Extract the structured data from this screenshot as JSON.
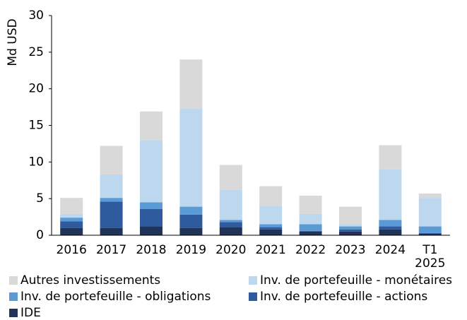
{
  "chart_data": {
    "type": "stacked_bar",
    "y_label": "Md USD",
    "categories": [
      "2016",
      "2017",
      "2018",
      "2019",
      "2020",
      "2021",
      "2022",
      "2023",
      "2024",
      "T1 2025"
    ],
    "series": [
      {
        "name": "IDE",
        "color": "#1f3458",
        "values": [
          1.0,
          1.0,
          1.2,
          1.0,
          1.1,
          0.8,
          0.5,
          0.5,
          0.8,
          0.2
        ]
      },
      {
        "name": "Inv. de portefeuille - actions",
        "color": "#2e5a9e",
        "values": [
          0.9,
          3.6,
          2.4,
          1.8,
          0.7,
          0.3,
          0.1,
          0.3,
          0.4,
          0.1
        ]
      },
      {
        "name": "Inv. de portefeuille - obligations",
        "color": "#5b9bd5",
        "values": [
          0.5,
          0.5,
          0.9,
          1.1,
          0.3,
          0.4,
          0.9,
          0.4,
          0.9,
          0.9
        ]
      },
      {
        "name": "Inv. de portefeuille - monétaires",
        "color": "#bdd7ee",
        "values": [
          0.5,
          3.2,
          8.5,
          13.4,
          4.1,
          2.5,
          1.4,
          0.3,
          6.9,
          3.9
        ]
      },
      {
        "name": "Autres investissements",
        "color": "#d9d9d9",
        "values": [
          2.2,
          3.9,
          3.9,
          6.7,
          3.4,
          2.7,
          2.5,
          2.4,
          3.3,
          0.6
        ]
      }
    ],
    "ylim": [
      0,
      30
    ],
    "yticks": [
      0,
      5,
      10,
      15,
      20,
      25,
      30
    ],
    "grid": false
  }
}
